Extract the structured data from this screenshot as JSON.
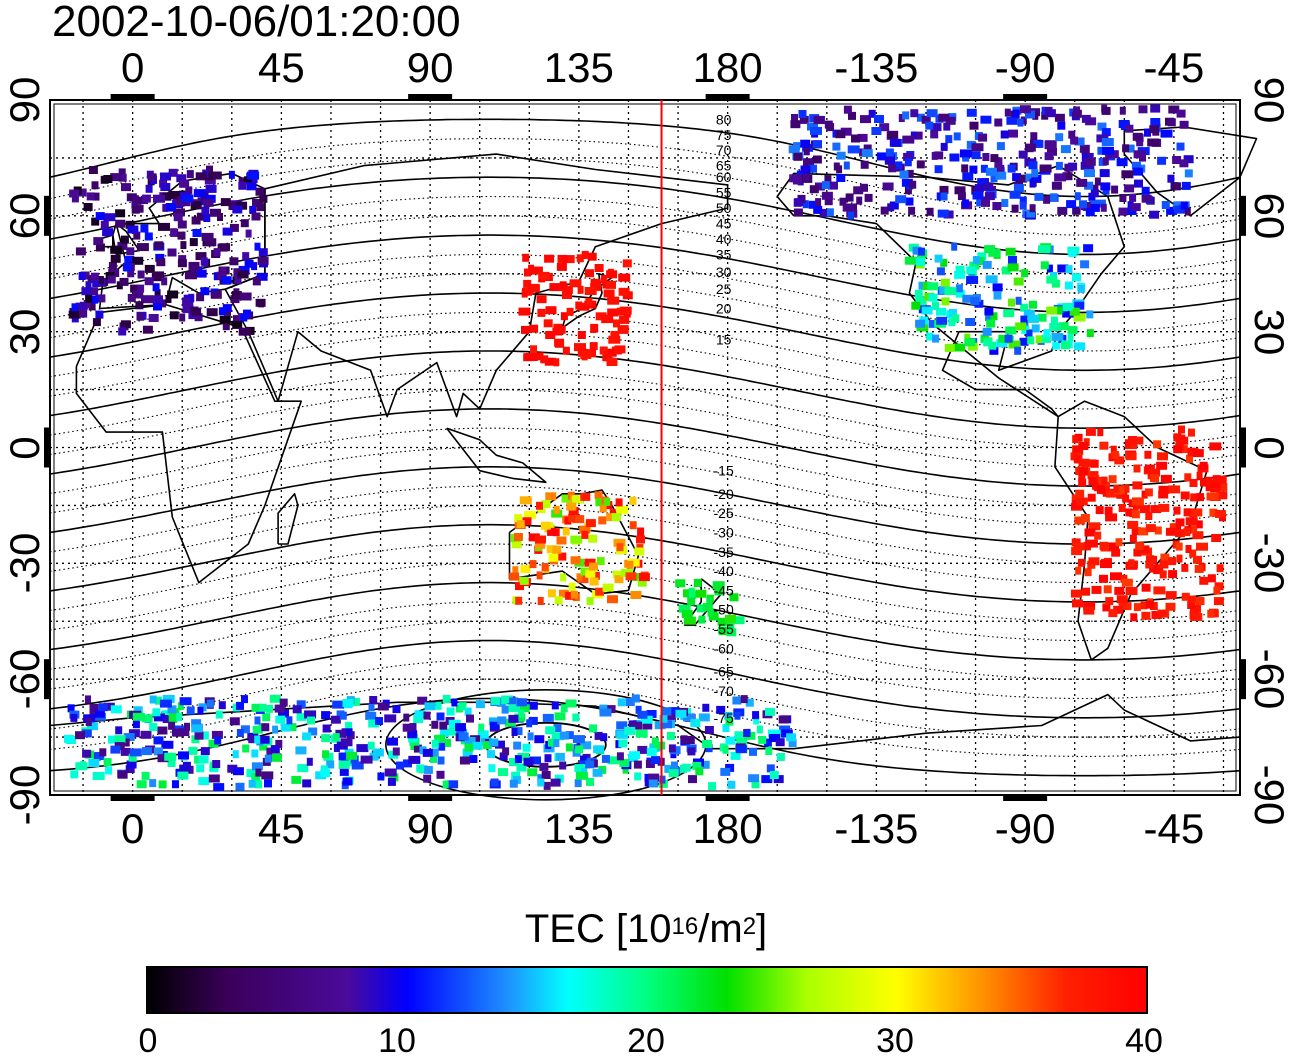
{
  "title": "2002-10-06/01:20:00",
  "axes": {
    "top_ticks": [
      "0",
      "45",
      "90",
      "135",
      "180",
      "-135",
      "-90",
      "-45"
    ],
    "bottom_ticks": [
      "0",
      "45",
      "90",
      "135",
      "180",
      "-135",
      "-90",
      "-45"
    ],
    "left_ticks": [
      "90",
      "60",
      "30",
      "0",
      "-30",
      "-60",
      "-90"
    ],
    "right_ticks": [
      "90",
      "60",
      "30",
      "0",
      "-30",
      "-60",
      "-90"
    ]
  },
  "contour_labels": [
    "80",
    "75",
    "70",
    "65",
    "60",
    "55",
    "50",
    "45",
    "40",
    "35",
    "30",
    "25",
    "20",
    "15",
    "-15",
    "-20",
    "-25",
    "-30",
    "-35",
    "-40",
    "-45",
    "-50",
    "-55",
    "-60",
    "-65",
    "-70",
    "-75"
  ],
  "colorbar": {
    "title_main": "TEC  [10",
    "title_exp1": "16",
    "title_mid": "/m",
    "title_exp2": "2",
    "title_end": "]",
    "ticks": [
      "0",
      "10",
      "20",
      "30",
      "40"
    ],
    "min": 0,
    "max": 40
  },
  "colors": {
    "terminator": "#ff0000",
    "coast": "#000000"
  },
  "map_data": {
    "type": "heatmap",
    "projection": "equirectangular",
    "lon_range": [
      -25,
      335
    ],
    "lat_range": [
      -90,
      90
    ],
    "terminator_lon": 160,
    "regions": [
      {
        "name": "europe",
        "lon": [
          -18,
          40
        ],
        "lat": [
          30,
          72
        ],
        "tec": [
          1,
          11
        ]
      },
      {
        "name": "north-america",
        "lon": [
          235,
          290
        ],
        "lat": [
          25,
          52
        ],
        "tec": [
          10,
          26
        ]
      },
      {
        "name": "east-asia",
        "lon": [
          118,
          150
        ],
        "lat": [
          22,
          50
        ],
        "tec": [
          38,
          40
        ]
      },
      {
        "name": "south-america",
        "lon": [
          285,
          330
        ],
        "lat": [
          -45,
          5
        ],
        "tec": [
          36,
          40
        ]
      },
      {
        "name": "australia",
        "lon": [
          115,
          155
        ],
        "lat": [
          -40,
          -12
        ],
        "tec": [
          24,
          40
        ]
      },
      {
        "name": "new-zealand",
        "lon": [
          165,
          185
        ],
        "lat": [
          -48,
          -35
        ],
        "tec": [
          20,
          24
        ]
      },
      {
        "name": "antarctica",
        "lon": [
          -20,
          200
        ],
        "lat": [
          -88,
          -65
        ],
        "tec": [
          6,
          22
        ]
      },
      {
        "name": "arctic",
        "lon": [
          200,
          320
        ],
        "lat": [
          60,
          88
        ],
        "tec": [
          4,
          14
        ]
      }
    ]
  }
}
